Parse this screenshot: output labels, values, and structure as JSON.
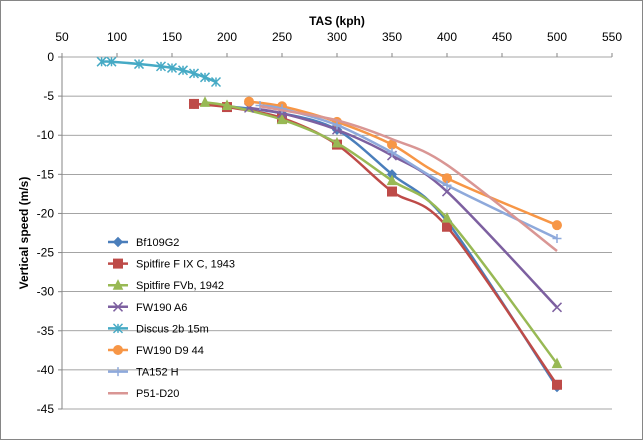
{
  "chart_data": {
    "type": "line",
    "title": "",
    "xlabel": "TAS (kph)",
    "ylabel": "Vertical speed (m/s)",
    "xlim": [
      50,
      550
    ],
    "ylim": [
      -45,
      0
    ],
    "x_ticks": [
      50,
      100,
      150,
      200,
      250,
      300,
      350,
      400,
      450,
      500,
      550
    ],
    "y_ticks": [
      0,
      -5,
      -10,
      -15,
      -20,
      -25,
      -30,
      -35,
      -40,
      -45
    ],
    "x_axis_position": "top",
    "grid": "horizontal",
    "legend_placement": "bottom-left",
    "series": [
      {
        "name": "Bf109G2",
        "color": "#4A7EBB",
        "marker": "diamond",
        "points": [
          [
            170,
            -6.0
          ],
          [
            200,
            -6.3
          ],
          [
            250,
            -7.2
          ],
          [
            300,
            -9.3
          ],
          [
            350,
            -15.0
          ],
          [
            400,
            -21.0
          ],
          [
            500,
            -42.2
          ]
        ]
      },
      {
        "name": "Spitfire F IX C, 1943",
        "color": "#BE4B48",
        "marker": "square",
        "points": [
          [
            170,
            -6.0
          ],
          [
            200,
            -6.4
          ],
          [
            250,
            -7.8
          ],
          [
            300,
            -11.2
          ],
          [
            350,
            -17.2
          ],
          [
            400,
            -21.7
          ],
          [
            500,
            -41.9
          ]
        ]
      },
      {
        "name": "Spitfire FVb, 1942",
        "color": "#98B954",
        "marker": "triangle",
        "points": [
          [
            180,
            -5.8
          ],
          [
            200,
            -6.2
          ],
          [
            250,
            -8.0
          ],
          [
            300,
            -11.0
          ],
          [
            350,
            -15.8
          ],
          [
            400,
            -20.6
          ],
          [
            500,
            -39.2
          ]
        ]
      },
      {
        "name": "FW190 A6",
        "color": "#7D60A0",
        "marker": "x",
        "points": [
          [
            220,
            -6.5
          ],
          [
            250,
            -7.2
          ],
          [
            300,
            -9.3
          ],
          [
            350,
            -12.6
          ],
          [
            400,
            -17.2
          ],
          [
            500,
            -32.0
          ]
        ]
      },
      {
        "name": "Discus 2b 15m",
        "color": "#46AAC5",
        "marker": "star",
        "points": [
          [
            86,
            -0.6
          ],
          [
            95,
            -0.6
          ],
          [
            120,
            -0.9
          ],
          [
            140,
            -1.2
          ],
          [
            150,
            -1.4
          ],
          [
            160,
            -1.7
          ],
          [
            170,
            -2.1
          ],
          [
            180,
            -2.6
          ],
          [
            190,
            -3.2
          ]
        ]
      },
      {
        "name": "FW190 D9 44",
        "color": "#F79646",
        "marker": "circle",
        "points": [
          [
            220,
            -5.7
          ],
          [
            250,
            -6.3
          ],
          [
            300,
            -8.3
          ],
          [
            350,
            -11.2
          ],
          [
            400,
            -15.5
          ],
          [
            500,
            -21.5
          ]
        ]
      },
      {
        "name": "TA152 H",
        "color": "#8EA9DB",
        "marker": "plus",
        "points": [
          [
            230,
            -6.2
          ],
          [
            250,
            -6.6
          ],
          [
            300,
            -8.7
          ],
          [
            350,
            -12.2
          ],
          [
            400,
            -16.4
          ],
          [
            500,
            -23.2
          ]
        ]
      },
      {
        "name": "P51-D20",
        "color": "#D99694",
        "marker": "none",
        "points": [
          [
            230,
            -6.3
          ],
          [
            250,
            -6.8
          ],
          [
            300,
            -8.1
          ],
          [
            350,
            -10.5
          ],
          [
            400,
            -13.8
          ],
          [
            500,
            -24.8
          ]
        ]
      }
    ]
  }
}
